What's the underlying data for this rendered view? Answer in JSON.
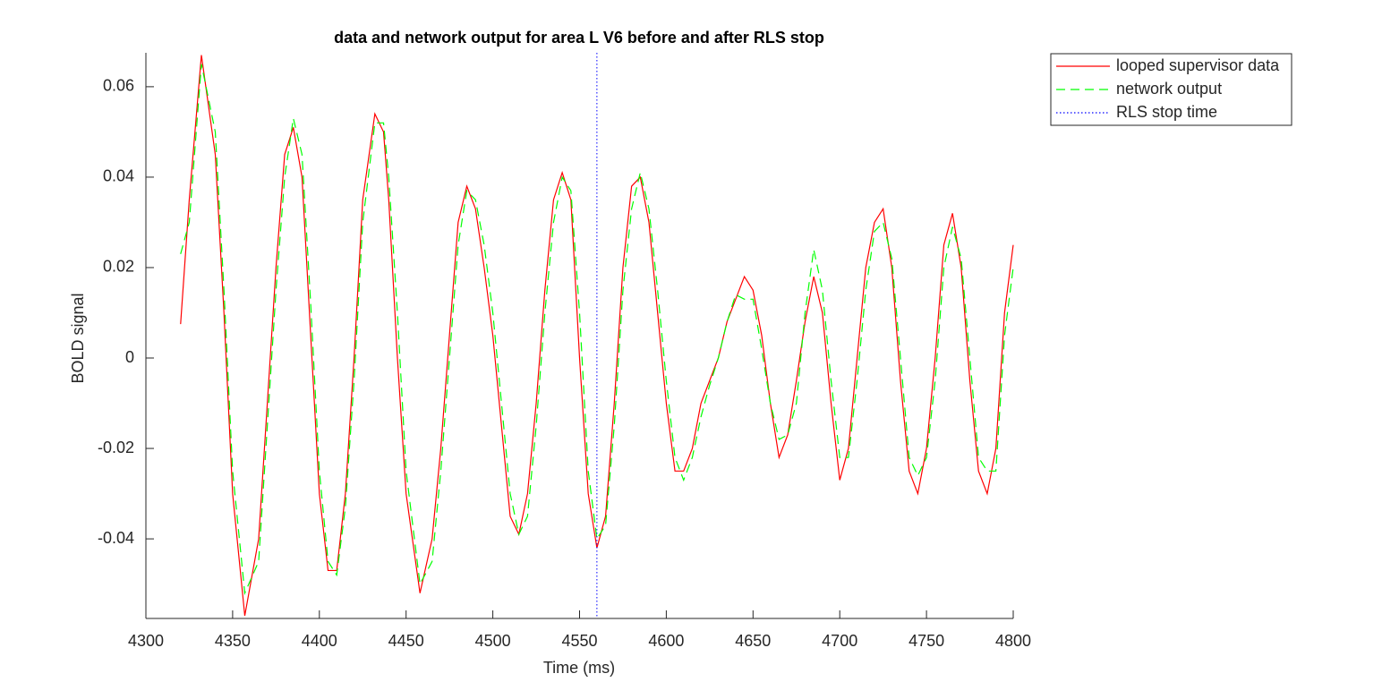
{
  "chart_data": {
    "type": "line",
    "title": "data and network output for area L V6 before and after RLS stop",
    "xlabel": "Time (ms)",
    "ylabel": "BOLD signal",
    "x": [
      4320,
      4325,
      4332,
      4340,
      4345,
      4350,
      4357,
      4365,
      4370,
      4375,
      4380,
      4385,
      4390,
      4395,
      4400,
      4405,
      4410,
      4415,
      4420,
      4425,
      4432,
      4437,
      4440,
      4445,
      4450,
      4458,
      4465,
      4470,
      4475,
      4480,
      4485,
      4490,
      4495,
      4500,
      4505,
      4510,
      4515,
      4520,
      4525,
      4530,
      4535,
      4540,
      4545,
      4550,
      4555,
      4560,
      4565,
      4570,
      4575,
      4580,
      4585,
      4590,
      4595,
      4600,
      4605,
      4610,
      4615,
      4620,
      4625,
      4630,
      4635,
      4640,
      4645,
      4650,
      4655,
      4660,
      4665,
      4670,
      4675,
      4680,
      4685,
      4690,
      4695,
      4700,
      4705,
      4710,
      4715,
      4720,
      4725,
      4730,
      4735,
      4740,
      4745,
      4750,
      4755,
      4760,
      4765,
      4770,
      4775,
      4780,
      4785,
      4790,
      4795,
      4800
    ],
    "series": [
      {
        "name": "looped supervisor data",
        "color": "#ff0000",
        "dash": "solid",
        "values": [
          0.0075,
          0.035,
          0.067,
          0.045,
          0.01,
          -0.03,
          -0.057,
          -0.04,
          -0.01,
          0.02,
          0.045,
          0.051,
          0.04,
          0.005,
          -0.03,
          -0.047,
          -0.047,
          -0.03,
          0.0,
          0.035,
          0.054,
          0.05,
          0.035,
          0.0,
          -0.03,
          -0.052,
          -0.04,
          -0.02,
          0.005,
          0.03,
          0.038,
          0.033,
          0.02,
          0.005,
          -0.015,
          -0.035,
          -0.039,
          -0.03,
          -0.01,
          0.015,
          0.035,
          0.041,
          0.035,
          0.0,
          -0.03,
          -0.042,
          -0.035,
          -0.01,
          0.02,
          0.038,
          0.04,
          0.03,
          0.01,
          -0.01,
          -0.025,
          -0.025,
          -0.02,
          -0.01,
          -0.005,
          0.0,
          0.008,
          0.013,
          0.018,
          0.015,
          0.005,
          -0.01,
          -0.022,
          -0.017,
          -0.005,
          0.008,
          0.018,
          0.01,
          -0.01,
          -0.027,
          -0.02,
          0.0,
          0.02,
          0.03,
          0.033,
          0.02,
          -0.005,
          -0.025,
          -0.03,
          -0.02,
          0.0,
          0.025,
          0.032,
          0.02,
          -0.005,
          -0.025,
          -0.03,
          -0.02,
          0.01,
          0.025
        ]
      },
      {
        "name": "network output",
        "color": "#00ff00",
        "dash": "dashed",
        "values": [
          0.023,
          0.03,
          0.065,
          0.05,
          0.015,
          -0.025,
          -0.052,
          -0.045,
          -0.015,
          0.015,
          0.04,
          0.053,
          0.045,
          0.012,
          -0.025,
          -0.045,
          -0.048,
          -0.033,
          -0.005,
          0.03,
          0.052,
          0.052,
          0.04,
          0.01,
          -0.025,
          -0.05,
          -0.045,
          -0.025,
          0.0,
          0.025,
          0.037,
          0.035,
          0.025,
          0.01,
          -0.01,
          -0.03,
          -0.039,
          -0.035,
          -0.015,
          0.01,
          0.03,
          0.04,
          0.037,
          0.01,
          -0.025,
          -0.04,
          -0.037,
          -0.015,
          0.015,
          0.033,
          0.041,
          0.033,
          0.015,
          -0.005,
          -0.022,
          -0.027,
          -0.022,
          -0.013,
          -0.006,
          0.0,
          0.008,
          0.014,
          0.013,
          0.013,
          0.002,
          -0.01,
          -0.018,
          -0.017,
          -0.01,
          0.01,
          0.024,
          0.015,
          -0.005,
          -0.022,
          -0.022,
          -0.005,
          0.015,
          0.028,
          0.03,
          0.022,
          0.0,
          -0.022,
          -0.026,
          -0.022,
          -0.005,
          0.02,
          0.029,
          0.022,
          0.0,
          -0.022,
          -0.025,
          -0.025,
          0.005,
          0.02
        ]
      }
    ],
    "stop_line": {
      "name": "RLS stop time",
      "x": 4560,
      "color": "#0000ff"
    },
    "xlim": [
      4300,
      4800
    ],
    "xticks": [
      4300,
      4350,
      4400,
      4450,
      4500,
      4550,
      4600,
      4650,
      4700,
      4750,
      4800
    ],
    "ylim": [
      -0.0576,
      0.0675
    ],
    "yticks": [
      -0.04,
      -0.02,
      0,
      0.02,
      0.04,
      0.06
    ],
    "legend": "northeast outside"
  }
}
